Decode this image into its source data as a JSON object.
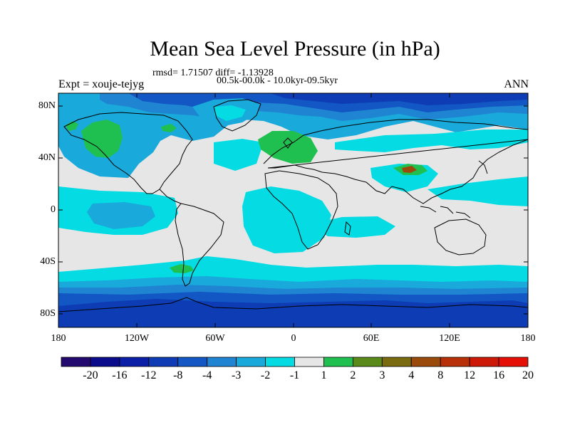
{
  "title": "Mean Sea Level Pressure (in hPa)",
  "stats": "rmsd= 1.71507 diff= -1.13928",
  "period": "00.5k-00.0k - 10.0kyr-09.5kyr",
  "expt": "Expt = xouje-tejyg",
  "season": "ANN",
  "lat_labels": [
    "80N",
    "40N",
    "0",
    "40S",
    "80S"
  ],
  "lon_labels": [
    "180",
    "120W",
    "60W",
    "0",
    "60E",
    "120E",
    "180"
  ],
  "colorbar": {
    "labels": [
      "-20",
      "-16",
      "-12",
      "-8",
      "-4",
      "-3",
      "-2",
      "-1",
      "1",
      "2",
      "3",
      "4",
      "8",
      "12",
      "16",
      "20"
    ],
    "colors": [
      "#240a6e",
      "#0b0c8c",
      "#0b1fa6",
      "#0d3cb5",
      "#1257c4",
      "#1f84d1",
      "#19a9da",
      "#04dbe3",
      "#e6e6e6",
      "#20c050",
      "#5a8a1a",
      "#7a6a10",
      "#9a4a0a",
      "#b83008",
      "#cc1a06",
      "#e60f05"
    ]
  },
  "legend_colors": {
    "strong_negative": "#0d3cb5",
    "moderate_negative": "#1257c4",
    "mild_negative": "#1f84d1",
    "weak_negative": "#19a9da",
    "slight_negative": "#04dbe3",
    "neutral": "#e6e6e6",
    "slight_positive": "#20c050",
    "moderate_positive": "#9a4a0a"
  }
}
